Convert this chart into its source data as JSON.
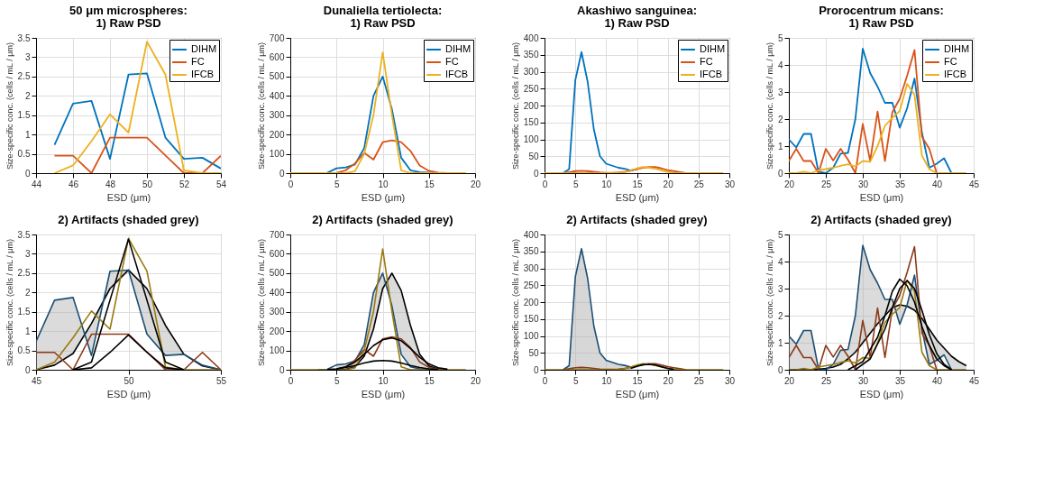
{
  "chart_data": [
    {
      "type": "line",
      "title": "50 μm microspheres:",
      "subtitle": "1) Raw PSD",
      "xlabel": "ESD (μm)",
      "ylabel": "Size-specific conc. (cells / mL / μm)",
      "xlim": [
        44,
        54
      ],
      "xticks": [
        44,
        46,
        48,
        50,
        52,
        54
      ],
      "ylim": [
        0,
        3.5
      ],
      "yticks": [
        0,
        0.5,
        1,
        1.5,
        2,
        2.5,
        3,
        3.5
      ],
      "grid": true,
      "legend": "top right",
      "x": [
        45,
        46,
        47,
        48,
        49,
        50,
        51,
        52,
        53,
        54
      ],
      "series": [
        {
          "name": "DIHM",
          "color": "#0072bd",
          "values": [
            0.73,
            1.8,
            1.87,
            0.37,
            2.55,
            2.58,
            0.92,
            0.37,
            0.4,
            0.12
          ]
        },
        {
          "name": "FC",
          "color": "#d95319",
          "values": [
            0.45,
            0.45,
            0,
            0.92,
            0.92,
            0.92,
            0.46,
            0,
            0,
            0.45
          ]
        },
        {
          "name": "IFCB",
          "color": "#edb120",
          "values": [
            0,
            0.2,
            0.83,
            1.52,
            1.05,
            3.4,
            2.55,
            0.07,
            0,
            0
          ]
        }
      ]
    },
    {
      "type": "line",
      "title": "Dunaliella tertiolecta:",
      "subtitle": "1) Raw PSD",
      "xlabel": "ESD (μm)",
      "ylabel": "Size-specific conc. (cells / mL / μm)",
      "xlim": [
        0,
        20
      ],
      "xticks": [
        0,
        5,
        10,
        15,
        20
      ],
      "ylim": [
        0,
        700
      ],
      "yticks": [
        0,
        100,
        200,
        300,
        400,
        500,
        600,
        700
      ],
      "grid": true,
      "legend": "top right",
      "x": [
        0,
        1,
        2,
        3,
        4,
        5,
        6,
        7,
        8,
        9,
        10,
        11,
        12,
        13,
        14,
        15,
        16,
        17,
        18,
        19
      ],
      "series": [
        {
          "name": "DIHM",
          "color": "#0072bd",
          "values": [
            null,
            null,
            null,
            0,
            2,
            25,
            30,
            45,
            130,
            400,
            500,
            330,
            80,
            15,
            5,
            3,
            0,
            null,
            null,
            null
          ]
        },
        {
          "name": "FC",
          "color": "#d95319",
          "values": [
            null,
            null,
            null,
            null,
            0,
            2,
            15,
            50,
            105,
            70,
            160,
            170,
            160,
            115,
            40,
            12,
            3,
            0,
            null,
            null
          ]
        },
        {
          "name": "IFCB",
          "color": "#edb120",
          "values": [
            0,
            0,
            0,
            0,
            0,
            0,
            0,
            10,
            100,
            300,
            625,
            300,
            15,
            0,
            0,
            0,
            0,
            0,
            0,
            0
          ]
        }
      ]
    },
    {
      "type": "line",
      "title": "Akashiwo sanguinea:",
      "subtitle": "1) Raw PSD",
      "xlabel": "ESD (μm)",
      "ylabel": "Size-specific conc. (cells / mL / μm)",
      "xlim": [
        0,
        30
      ],
      "xticks": [
        0,
        5,
        10,
        15,
        20,
        25,
        30
      ],
      "ylim": [
        0,
        400
      ],
      "yticks": [
        0,
        50,
        100,
        150,
        200,
        250,
        300,
        350,
        400
      ],
      "grid": true,
      "legend": "top right",
      "x": [
        0,
        1,
        2,
        3,
        4,
        5,
        6,
        7,
        8,
        9,
        10,
        11,
        12,
        13,
        14,
        15,
        16,
        17,
        18,
        19,
        20,
        21,
        22,
        23,
        24,
        25,
        26,
        27,
        28,
        29
      ],
      "series": [
        {
          "name": "DIHM",
          "color": "#0072bd",
          "values": [
            null,
            null,
            null,
            0,
            12,
            275,
            358,
            270,
            130,
            50,
            28,
            22,
            16,
            13,
            8,
            12,
            null,
            null,
            null,
            null,
            null,
            null,
            null,
            null,
            null,
            null,
            null,
            null,
            null,
            null
          ]
        },
        {
          "name": "FC",
          "color": "#d95319",
          "values": [
            null,
            null,
            null,
            0,
            3,
            6,
            7,
            6,
            4,
            2,
            1,
            1,
            2,
            4,
            7,
            12,
            16,
            18,
            18,
            14,
            9,
            6,
            3,
            0,
            null,
            null,
            null,
            null,
            null,
            null
          ]
        },
        {
          "name": "IFCB",
          "color": "#edb120",
          "values": [
            0,
            0,
            0,
            0,
            0,
            0,
            0,
            0,
            0,
            0,
            0,
            0,
            1,
            3,
            8,
            14,
            18,
            16,
            13,
            8,
            4,
            1,
            0,
            0,
            0,
            0,
            0,
            0,
            0,
            0
          ]
        }
      ]
    },
    {
      "type": "line",
      "title": "Prorocentrum micans:",
      "subtitle": "1) Raw PSD",
      "xlabel": "ESD (μm)",
      "ylabel": "Size-specific conc. (cells / mL / μm)",
      "xlim": [
        20,
        45
      ],
      "xticks": [
        20,
        25,
        30,
        35,
        40,
        45
      ],
      "ylim": [
        0,
        5
      ],
      "yticks": [
        0,
        1,
        2,
        3,
        4,
        5
      ],
      "grid": true,
      "legend": "top right",
      "x": [
        20,
        21,
        22,
        23,
        24,
        25,
        26,
        27,
        28,
        29,
        30,
        31,
        32,
        33,
        34,
        35,
        36,
        37,
        38,
        39,
        40,
        41,
        42,
        43,
        44
      ],
      "series": [
        {
          "name": "DIHM",
          "color": "#0072bd",
          "values": [
            1.25,
            0.95,
            1.45,
            1.45,
            0.05,
            0,
            0.2,
            0.72,
            0.75,
            2.0,
            4.6,
            3.7,
            3.2,
            2.6,
            2.6,
            1.68,
            2.4,
            3.5,
            1.5,
            0.2,
            0.35,
            0.55,
            0,
            null,
            null
          ]
        },
        {
          "name": "FC",
          "color": "#d95319",
          "values": [
            0.45,
            0.9,
            0.45,
            0.45,
            0,
            0.9,
            0.47,
            0.9,
            0.5,
            0,
            1.82,
            0.45,
            2.28,
            0.45,
            2.25,
            2.75,
            3.6,
            4.55,
            1.35,
            0.9,
            0,
            null,
            null,
            null,
            null
          ]
        },
        {
          "name": "IFCB",
          "color": "#edb120",
          "values": [
            0,
            0,
            0.05,
            0,
            0.1,
            0.15,
            0.2,
            0.27,
            0.33,
            0.25,
            0.45,
            0.42,
            1.0,
            1.75,
            2.05,
            2.3,
            3.3,
            2.9,
            0.65,
            0.15,
            0,
            0,
            0,
            0,
            0
          ]
        }
      ]
    },
    {
      "type": "line",
      "title": "2) Artifacts (shaded grey)",
      "xlabel": "ESD (μm)",
      "ylabel": "Size-specific conc. (cells / mL / μm)",
      "xlim": [
        45,
        55
      ],
      "xticks": [
        45,
        50,
        55
      ],
      "ylim": [
        0,
        3.5
      ],
      "yticks": [
        0,
        0.5,
        1,
        1.5,
        2,
        2.5,
        3,
        3.5
      ],
      "grid": true,
      "x": [
        45,
        46,
        47,
        48,
        49,
        50,
        51,
        52,
        53,
        54,
        55
      ],
      "series": [
        {
          "color": "#000000",
          "values": [
            0,
            0.12,
            0.42,
            1.2,
            2.1,
            2.58,
            2.1,
            1.15,
            0.4,
            0.1,
            0
          ],
          "lower": [
            0,
            0.12,
            0.42,
            1.2,
            2.1,
            2.58,
            2.1,
            1.15,
            0.4,
            0.1,
            0
          ],
          "upper": [
            0.73,
            1.8,
            1.87,
            0.37,
            2.55,
            2.58,
            0.92,
            0.37,
            0.4,
            0.12,
            0
          ]
        },
        {
          "color": "#1c4f75",
          "values": [
            0.73,
            1.8,
            1.87,
            0.37,
            2.55,
            2.58,
            0.92,
            0.37,
            0.4,
            0.12,
            0
          ]
        },
        {
          "color": "#8b3a1a",
          "values": [
            0.45,
            0.45,
            0,
            0.92,
            0.92,
            0.92,
            0.46,
            0,
            0,
            0.45,
            0
          ]
        },
        {
          "color": "#9a7a10",
          "values": [
            0,
            0.2,
            0.83,
            1.52,
            1.05,
            3.4,
            2.55,
            0.07,
            0,
            0,
            0
          ]
        },
        {
          "color": "#000000",
          "x": [
            47,
            48,
            49,
            50,
            51,
            52,
            53
          ],
          "values": [
            0,
            0.2,
            1.8,
            3.38,
            1.8,
            0.2,
            0
          ]
        },
        {
          "color": "#000000",
          "x": [
            47,
            48,
            49,
            50,
            51,
            52,
            53
          ],
          "values": [
            0,
            0.05,
            0.45,
            0.9,
            0.45,
            0.05,
            0
          ]
        }
      ]
    },
    {
      "type": "line",
      "title": "2) Artifacts (shaded grey)",
      "xlabel": "ESD (μm)",
      "ylabel": "Size-specific conc. (cells / mL / μm)",
      "xlim": [
        0,
        20
      ],
      "xticks": [
        0,
        5,
        10,
        15,
        20
      ],
      "ylim": [
        0,
        700
      ],
      "yticks": [
        0,
        100,
        200,
        300,
        400,
        500,
        600,
        700
      ],
      "grid": true,
      "x": [
        0,
        1,
        2,
        3,
        4,
        5,
        6,
        7,
        8,
        9,
        10,
        11,
        12,
        13,
        14,
        15,
        16,
        17,
        18,
        19
      ],
      "series": [
        {
          "color": "#000000",
          "x": [
            5,
            6,
            7,
            8,
            9,
            10,
            11,
            12,
            13,
            14,
            15,
            16,
            17
          ],
          "values": [
            0,
            2,
            15,
            70,
            210,
            420,
            500,
            410,
            230,
            80,
            20,
            3,
            0
          ],
          "lower": [
            0,
            2,
            15,
            70,
            210,
            420,
            500,
            410,
            230,
            80,
            20,
            3,
            0
          ],
          "upper": [
            25,
            30,
            45,
            130,
            400,
            500,
            330,
            80,
            15,
            5,
            3,
            0,
            0
          ]
        },
        {
          "color": "#1c4f75",
          "values": [
            null,
            null,
            null,
            0,
            2,
            25,
            30,
            45,
            130,
            400,
            500,
            330,
            80,
            15,
            5,
            3,
            0,
            null,
            null,
            null
          ]
        },
        {
          "color": "#8b3a1a",
          "values": [
            null,
            null,
            null,
            null,
            0,
            2,
            15,
            50,
            105,
            70,
            160,
            170,
            160,
            115,
            40,
            12,
            3,
            0,
            null,
            null
          ]
        },
        {
          "color": "#9a7a10",
          "values": [
            0,
            0,
            0,
            0,
            0,
            0,
            0,
            10,
            100,
            300,
            625,
            300,
            15,
            0,
            0,
            0,
            0,
            0,
            0,
            0
          ]
        },
        {
          "color": "#000000",
          "x": [
            5,
            6,
            7,
            8,
            9,
            10,
            11,
            12,
            13,
            14,
            15,
            16,
            17
          ],
          "values": [
            5,
            15,
            40,
            80,
            125,
            155,
            165,
            150,
            110,
            65,
            30,
            10,
            3
          ]
        },
        {
          "color": "#000000",
          "x": [
            4,
            5,
            6,
            7,
            8,
            9,
            10,
            11,
            12,
            13,
            14,
            15,
            16
          ],
          "values": [
            1,
            5,
            12,
            22,
            35,
            45,
            48,
            45,
            35,
            22,
            12,
            5,
            1
          ]
        }
      ]
    },
    {
      "type": "line",
      "title": "2) Artifacts (shaded grey)",
      "xlabel": "ESD (μm)",
      "ylabel": "Size-specific conc. (cells / mL / μm)",
      "xlim": [
        0,
        30
      ],
      "xticks": [
        0,
        5,
        10,
        15,
        20,
        25,
        30
      ],
      "ylim": [
        0,
        400
      ],
      "yticks": [
        0,
        50,
        100,
        150,
        200,
        250,
        300,
        350,
        400
      ],
      "grid": true,
      "x": [
        0,
        1,
        2,
        3,
        4,
        5,
        6,
        7,
        8,
        9,
        10,
        11,
        12,
        13,
        14,
        15,
        16,
        17,
        18,
        19,
        20,
        21,
        22,
        23,
        24,
        25,
        26,
        27,
        28,
        29
      ],
      "series": [
        {
          "type": "area",
          "color": "#b0b0b0",
          "x": [
            3,
            4,
            5,
            6,
            7,
            8,
            9,
            10,
            11,
            12,
            13,
            14
          ],
          "values": [
            0,
            12,
            275,
            358,
            270,
            130,
            50,
            28,
            22,
            16,
            13,
            8
          ]
        },
        {
          "color": "#1c4f75",
          "values": [
            null,
            null,
            null,
            0,
            12,
            275,
            358,
            270,
            130,
            50,
            28,
            22,
            16,
            13,
            8,
            12,
            15,
            17,
            null,
            null,
            null,
            null,
            null,
            null,
            null,
            null,
            null,
            null,
            null,
            null
          ]
        },
        {
          "color": "#8b3a1a",
          "values": [
            null,
            null,
            null,
            0,
            3,
            6,
            7,
            6,
            4,
            2,
            1,
            1,
            2,
            4,
            7,
            12,
            16,
            18,
            18,
            14,
            9,
            6,
            3,
            0,
            null,
            null,
            null,
            null,
            null,
            null
          ]
        },
        {
          "color": "#9a7a10",
          "values": [
            0,
            0,
            0,
            0,
            0,
            0,
            0,
            0,
            0,
            0,
            0,
            0,
            1,
            3,
            8,
            14,
            18,
            16,
            13,
            8,
            4,
            1,
            0,
            0,
            0,
            0,
            0,
            0,
            0,
            0
          ]
        },
        {
          "color": "#000000",
          "x": [
            14,
            15,
            16,
            17,
            18,
            19,
            20,
            21
          ],
          "values": [
            4,
            10,
            15,
            16,
            14,
            9,
            4,
            1
          ]
        }
      ]
    },
    {
      "type": "line",
      "title": "2) Artifacts (shaded grey)",
      "xlabel": "ESD (μm)",
      "ylabel": "Size-specific conc. (cells / mL / μm)",
      "xlim": [
        20,
        45
      ],
      "xticks": [
        20,
        25,
        30,
        35,
        40,
        45
      ],
      "ylim": [
        0,
        5
      ],
      "yticks": [
        0,
        1,
        2,
        3,
        4,
        5
      ],
      "grid": true,
      "x": [
        20,
        21,
        22,
        23,
        24,
        25,
        26,
        27,
        28,
        29,
        30,
        31,
        32,
        33,
        34,
        35,
        36,
        37,
        38,
        39,
        40,
        41,
        42,
        43,
        44
      ],
      "series": [
        {
          "color": "#000000",
          "values": [
            0,
            0,
            0,
            0,
            0.02,
            0.05,
            0.1,
            0.2,
            0.4,
            0.65,
            1.0,
            1.35,
            1.7,
            2.0,
            2.3,
            2.4,
            2.35,
            2.2,
            1.9,
            1.5,
            1.1,
            0.8,
            0.5,
            0.3,
            0.15
          ],
          "lower": [
            0,
            0,
            0,
            0,
            0.02,
            0.05,
            0.1,
            0.2,
            0.4,
            0.65,
            1.0,
            1.35,
            1.7,
            2.0,
            2.3,
            2.4,
            2.35,
            2.2,
            1.9,
            1.5,
            1.1,
            0.8,
            0.5,
            0.3,
            0.15
          ],
          "upper": [
            1.25,
            0.95,
            1.45,
            1.45,
            0.05,
            0,
            0.2,
            0.72,
            0.75,
            2.0,
            4.6,
            3.7,
            3.2,
            2.6,
            2.6,
            1.68,
            2.4,
            3.5,
            1.5,
            0.2,
            0.35,
            0.55,
            0,
            0,
            0
          ]
        },
        {
          "color": "#1c4f75",
          "values": [
            1.25,
            0.95,
            1.45,
            1.45,
            0.05,
            0,
            0.2,
            0.72,
            0.75,
            2.0,
            4.6,
            3.7,
            3.2,
            2.6,
            2.6,
            1.68,
            2.4,
            3.5,
            1.5,
            0.2,
            0.35,
            0.55,
            0,
            null,
            null
          ]
        },
        {
          "color": "#8b3a1a",
          "values": [
            0.45,
            0.9,
            0.45,
            0.45,
            0,
            0.9,
            0.47,
            0.9,
            0.5,
            0,
            1.82,
            0.45,
            2.28,
            0.45,
            2.25,
            2.75,
            3.6,
            4.55,
            1.35,
            0.9,
            0,
            null,
            null,
            null,
            null
          ]
        },
        {
          "color": "#9a7a10",
          "values": [
            0,
            0,
            0.05,
            0,
            0.1,
            0.15,
            0.2,
            0.27,
            0.33,
            0.25,
            0.45,
            0.42,
            1.0,
            1.75,
            2.05,
            2.3,
            3.3,
            2.9,
            0.65,
            0.15,
            0,
            0,
            0,
            0,
            0
          ]
        },
        {
          "color": "#000000",
          "x": [
            28,
            30,
            32,
            33,
            34,
            35,
            36,
            37,
            38,
            39,
            40,
            41,
            42
          ],
          "values": [
            0,
            0.3,
            1.2,
            2.0,
            2.9,
            3.35,
            3.1,
            2.5,
            1.6,
            0.9,
            0.4,
            0.15,
            0
          ]
        },
        {
          "color": "#000000",
          "x": [
            29,
            31,
            33,
            34,
            35,
            36,
            37,
            38,
            39,
            40,
            41,
            42
          ],
          "values": [
            0,
            0.4,
            1.5,
            2.3,
            3.0,
            3.3,
            3.0,
            2.2,
            1.3,
            0.6,
            0.2,
            0
          ]
        }
      ]
    }
  ]
}
